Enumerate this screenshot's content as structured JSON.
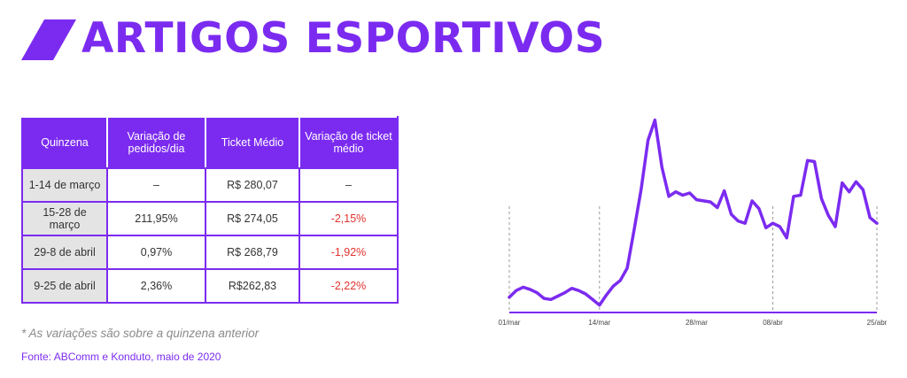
{
  "header": {
    "title": "ARTIGOS ESPORTIVOS",
    "accent_color": "#7B2BF0"
  },
  "table": {
    "headers": [
      "Quinzena",
      "Variação de pedidos/dia",
      "Ticket Médio",
      "Variação de ticket médio"
    ],
    "rows": [
      [
        "1-14 de março",
        "–",
        "R$ 280,07",
        "–"
      ],
      [
        "15-28 de março",
        "211,95%",
        "R$ 274,05",
        "-2,15%"
      ],
      [
        "29-8 de abril",
        "0,97%",
        "R$ 268,79",
        "-1,92%"
      ],
      [
        "9-25 de abril",
        "2,36%",
        "R$262,83",
        "-2,22%"
      ]
    ],
    "negative_color": "#E0322E",
    "label_bg": "#E4E4E4"
  },
  "footnote": "* As variações são sobre a quinzena anterior",
  "source": "Fonte: ABComm e Konduto, maio de 2020",
  "chart_data": {
    "type": "line",
    "title": "",
    "xlabel": "",
    "ylabel": "",
    "grid": false,
    "x_ticks": [
      {
        "label": "01/mar",
        "index": 0
      },
      {
        "label": "14/mar",
        "index": 13
      },
      {
        "label": "28/mar",
        "index": 27
      },
      {
        "label": "08/abr",
        "index": 38
      },
      {
        "label": "25/abr",
        "index": 55
      }
    ],
    "series": [
      {
        "color": "#7B2BF0",
        "values": [
          12,
          18,
          21,
          19,
          16,
          11,
          10,
          13,
          16,
          20,
          18,
          15,
          10,
          5,
          14,
          22,
          27,
          38,
          72,
          108,
          152,
          170,
          128,
          102,
          106,
          103,
          105,
          99,
          98,
          97,
          92,
          107,
          86,
          80,
          78,
          98,
          91,
          74,
          78,
          75,
          65,
          102,
          103,
          134,
          133,
          100,
          85,
          75,
          114,
          106,
          115,
          108,
          83,
          78
        ]
      }
    ],
    "ylim": [
      0,
      180
    ]
  }
}
